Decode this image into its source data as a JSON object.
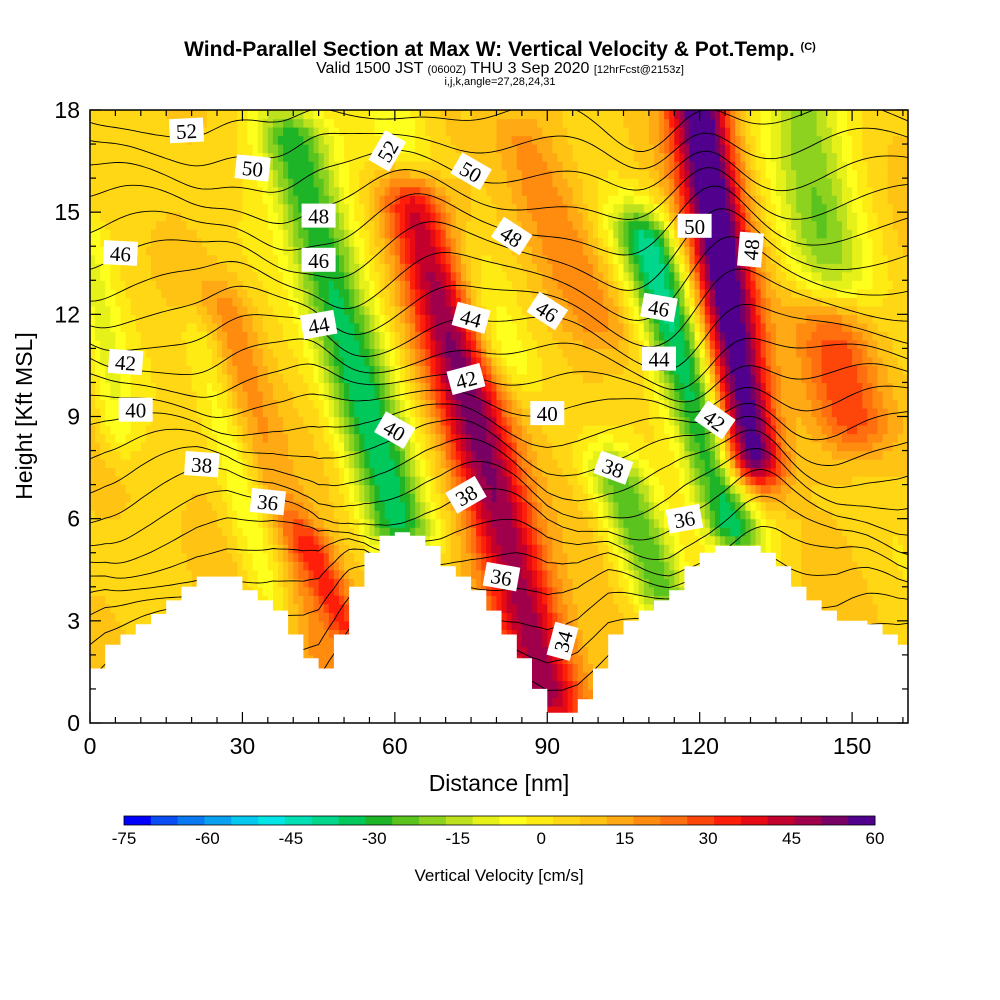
{
  "header": {
    "title": "Wind-Parallel Section at Max W: Vertical Velocity & Pot.Temp.",
    "title_units": "(C)",
    "valid_prefix": "Valid 1500 JST",
    "valid_utc": "(0600Z)",
    "valid_date": "THU 3 Sep 2020",
    "forecast_info": "[12hrFcst@2153z]",
    "indices": "i,j,k,angle=27,28,24,31"
  },
  "chart_data": {
    "type": "heatmap",
    "xlabel": "Distance [nm]",
    "ylabel": "Height [Kft MSL]",
    "xlim": [
      0,
      161
    ],
    "ylim": [
      0,
      18
    ],
    "x_ticks": [
      0,
      30,
      60,
      90,
      120,
      150
    ],
    "y_ticks": [
      0,
      3,
      6,
      9,
      12,
      15,
      18
    ],
    "colorbar": {
      "label": "Vertical Velocity [cm/s]",
      "ticks": [
        -75,
        -60,
        -45,
        -30,
        -15,
        0,
        15,
        30,
        45,
        60
      ],
      "range": [
        -75,
        60
      ],
      "colors": [
        "#0000ff",
        "#0a4df5",
        "#0a78f0",
        "#0aa0f0",
        "#05c8f0",
        "#00e6e6",
        "#00e0b4",
        "#00d78c",
        "#00c85a",
        "#1eb428",
        "#5ac31e",
        "#8cd21e",
        "#bee11e",
        "#e6f019",
        "#ffff1e",
        "#ffeb14",
        "#ffd714",
        "#ffc314",
        "#ffaa14",
        "#ff8c0f",
        "#ff6e0f",
        "#ff460a",
        "#ff1e0a",
        "#e60a14",
        "#c3002d",
        "#a0004b",
        "#780064",
        "#50008c"
      ]
    },
    "terrain_profile": {
      "x": [
        0,
        3,
        6,
        9,
        12,
        15,
        18,
        21,
        24,
        27,
        30,
        33,
        36,
        39,
        42,
        45,
        48,
        51,
        54,
        57,
        60,
        63,
        66,
        69,
        72,
        75,
        78,
        81,
        84,
        87,
        90,
        93,
        96,
        99,
        102,
        105,
        108,
        111,
        114,
        117,
        120,
        123,
        126,
        129,
        132,
        135,
        138,
        141,
        144,
        147,
        150,
        153,
        156,
        159,
        161
      ],
      "height": [
        1.6,
        2.3,
        2.6,
        2.9,
        3.2,
        3.6,
        4.0,
        4.3,
        4.3,
        4.3,
        3.9,
        3.6,
        3.3,
        2.6,
        1.9,
        1.6,
        2.6,
        4.0,
        5.0,
        5.5,
        5.6,
        5.5,
        5.2,
        4.6,
        4.3,
        3.9,
        3.3,
        2.6,
        1.9,
        1.0,
        0.3,
        0.3,
        0.7,
        1.6,
        2.6,
        3.0,
        3.3,
        3.6,
        3.9,
        4.6,
        5.0,
        5.2,
        5.2,
        5.2,
        5.0,
        4.6,
        4.0,
        3.6,
        3.3,
        3.0,
        3.0,
        2.9,
        2.6,
        2.3,
        2.3
      ]
    },
    "vertical_velocity_features": [
      {
        "x_base": 90,
        "y_base": 1,
        "x_top": 65,
        "y_top": 15,
        "width_nm": 7,
        "peak_cms": 45
      },
      {
        "x_base": 60,
        "y_base": 6,
        "x_top": 40,
        "y_top": 17,
        "width_nm": 7,
        "peak_cms": -40
      },
      {
        "x_base": 130,
        "y_base": 8,
        "x_top": 120,
        "y_top": 18,
        "width_nm": 6,
        "peak_cms": 60
      },
      {
        "x_base": 126,
        "y_base": 6,
        "x_top": 110,
        "y_top": 14,
        "width_nm": 6,
        "peak_cms": -45
      },
      {
        "x_base": 145,
        "y_base": 13,
        "x_top": 140,
        "y_top": 18,
        "width_nm": 8,
        "peak_cms": -28
      },
      {
        "x_base": 112,
        "y_base": 4,
        "x_top": 104,
        "y_top": 7,
        "width_nm": 6,
        "peak_cms": -30
      },
      {
        "x_base": 150,
        "y_base": 9,
        "x_top": 146,
        "y_top": 12,
        "width_nm": 8,
        "peak_cms": 22
      },
      {
        "x_base": 80,
        "y_base": 11,
        "x_top": 60,
        "y_top": 18,
        "width_nm": 6,
        "peak_cms": -15
      },
      {
        "x_base": 5,
        "y_base": 9,
        "x_top": 0,
        "y_top": 14,
        "width_nm": 4,
        "peak_cms": -14
      },
      {
        "x_base": 45,
        "y_base": 2,
        "x_top": 28,
        "y_top": 12,
        "width_nm": 5,
        "peak_cms": 12
      },
      {
        "x_base": 35,
        "y_base": 4,
        "x_top": 22,
        "y_top": 11,
        "width_nm": 4,
        "peak_cms": -12
      },
      {
        "x_base": 50,
        "y_base": 3,
        "x_top": 44,
        "y_top": 5,
        "width_nm": 4,
        "peak_cms": 25
      },
      {
        "x_base": 100,
        "y_base": 12,
        "x_top": 85,
        "y_top": 17,
        "width_nm": 7,
        "peak_cms": 12
      }
    ],
    "theta_contours": {
      "levels": [
        32,
        33,
        34,
        35,
        36,
        37,
        38,
        39,
        40,
        41,
        42,
        43,
        44,
        45,
        46,
        47,
        48,
        49,
        50,
        51,
        52,
        53,
        54
      ],
      "labels": [
        {
          "text": "52",
          "x": 19,
          "y": 17.4,
          "angle": -3
        },
        {
          "text": "50",
          "x": 32,
          "y": 16.3,
          "angle": 6
        },
        {
          "text": "48",
          "x": 45,
          "y": 14.9,
          "angle": 0
        },
        {
          "text": "46",
          "x": 6,
          "y": 13.8,
          "angle": 3
        },
        {
          "text": "46",
          "x": 45,
          "y": 13.6,
          "angle": 0
        },
        {
          "text": "44",
          "x": 45,
          "y": 11.7,
          "angle": -10
        },
        {
          "text": "42",
          "x": 7,
          "y": 10.6,
          "angle": 4
        },
        {
          "text": "40",
          "x": 9,
          "y": 9.2,
          "angle": 0
        },
        {
          "text": "38",
          "x": 22,
          "y": 7.6,
          "angle": 4
        },
        {
          "text": "36",
          "x": 35,
          "y": 6.5,
          "angle": 6
        },
        {
          "text": "52",
          "x": 58.5,
          "y": 16.8,
          "angle": -60
        },
        {
          "text": "50",
          "x": 75,
          "y": 16.2,
          "angle": 30
        },
        {
          "text": "48",
          "x": 83,
          "y": 14.3,
          "angle": 33
        },
        {
          "text": "46",
          "x": 90,
          "y": 12.1,
          "angle": 33
        },
        {
          "text": "44",
          "x": 75,
          "y": 11.9,
          "angle": 15
        },
        {
          "text": "42",
          "x": 74,
          "y": 10.1,
          "angle": -15
        },
        {
          "text": "40",
          "x": 60,
          "y": 8.6,
          "angle": 30
        },
        {
          "text": "38",
          "x": 74,
          "y": 6.7,
          "angle": -30
        },
        {
          "text": "36",
          "x": 81,
          "y": 4.3,
          "angle": 10
        },
        {
          "text": "34",
          "x": 93,
          "y": 2.4,
          "angle": -75
        },
        {
          "text": "40",
          "x": 90,
          "y": 9.1,
          "angle": 0
        },
        {
          "text": "38",
          "x": 103,
          "y": 7.5,
          "angle": 20
        },
        {
          "text": "36",
          "x": 117,
          "y": 6.0,
          "angle": -10
        },
        {
          "text": "46",
          "x": 112,
          "y": 12.2,
          "angle": 10
        },
        {
          "text": "44",
          "x": 112,
          "y": 10.7,
          "angle": 0
        },
        {
          "text": "42",
          "x": 123,
          "y": 8.9,
          "angle": 35
        },
        {
          "text": "50",
          "x": 119,
          "y": 14.6,
          "angle": 0
        },
        {
          "text": "48",
          "x": 130,
          "y": 13.9,
          "angle": -85
        }
      ]
    }
  }
}
